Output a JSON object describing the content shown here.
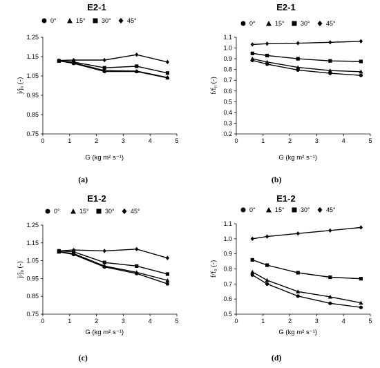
{
  "chart_data": [
    {
      "type": "line",
      "title": "E2-1",
      "panel_label": "(a)",
      "xlabel": "G (kg m² s⁻¹)",
      "ylabel": "j/j₀ (-)",
      "xlim": [
        0,
        5
      ],
      "ylim": [
        0.75,
        1.25
      ],
      "xticks": [
        0,
        1,
        2,
        3,
        4,
        5
      ],
      "yticks": [
        0.75,
        0.85,
        0.95,
        1.05,
        1.15,
        1.25
      ],
      "grid": false,
      "legend": "top",
      "series": [
        {
          "name": "0°",
          "marker": "circle",
          "x": [
            0.6,
            1.15,
            2.3,
            3.5,
            4.65
          ],
          "y": [
            1.128,
            1.115,
            1.073,
            1.073,
            1.04
          ]
        },
        {
          "name": "15°",
          "marker": "triangle",
          "x": [
            0.6,
            1.15,
            2.3,
            3.5,
            4.65
          ],
          "y": [
            1.128,
            1.118,
            1.078,
            1.075,
            1.042
          ]
        },
        {
          "name": "30°",
          "marker": "square",
          "x": [
            0.6,
            1.15,
            2.3,
            3.5,
            4.65
          ],
          "y": [
            1.128,
            1.122,
            1.092,
            1.1,
            1.065
          ]
        },
        {
          "name": "45°",
          "marker": "diamond",
          "x": [
            0.6,
            1.15,
            2.3,
            3.5,
            4.65
          ],
          "y": [
            1.13,
            1.132,
            1.132,
            1.16,
            1.122
          ]
        }
      ]
    },
    {
      "type": "line",
      "title": "E2-1",
      "panel_label": "(b)",
      "xlabel": "G (kg m² s⁻¹)",
      "ylabel": "f/f₀ (-)",
      "xlim": [
        0,
        5
      ],
      "ylim": [
        0.2,
        1.1
      ],
      "xticks": [
        0,
        1,
        2,
        3,
        4,
        5
      ],
      "yticks": [
        0.2,
        0.3,
        0.4,
        0.5,
        0.6,
        0.7,
        0.8,
        0.9,
        1.0,
        1.1
      ],
      "grid": false,
      "legend": "top",
      "series": [
        {
          "name": "0°",
          "marker": "circle",
          "x": [
            0.6,
            1.15,
            2.3,
            3.5,
            4.65
          ],
          "y": [
            0.885,
            0.85,
            0.795,
            0.765,
            0.745
          ]
        },
        {
          "name": "15°",
          "marker": "triangle",
          "x": [
            0.6,
            1.15,
            2.3,
            3.5,
            4.65
          ],
          "y": [
            0.9,
            0.87,
            0.82,
            0.79,
            0.78
          ]
        },
        {
          "name": "30°",
          "marker": "square",
          "x": [
            0.6,
            1.15,
            2.3,
            3.5,
            4.65
          ],
          "y": [
            0.95,
            0.93,
            0.9,
            0.88,
            0.875
          ]
        },
        {
          "name": "45°",
          "marker": "diamond",
          "x": [
            0.6,
            1.15,
            2.3,
            3.5,
            4.65
          ],
          "y": [
            1.033,
            1.04,
            1.045,
            1.053,
            1.063
          ]
        }
      ]
    },
    {
      "type": "line",
      "title": "E1-2",
      "panel_label": "(c)",
      "xlabel": "G (kg m² s⁻¹)",
      "ylabel": "j/j₀ (-)",
      "xlim": [
        0,
        5
      ],
      "ylim": [
        0.75,
        1.25
      ],
      "xticks": [
        0,
        1,
        2,
        3,
        4,
        5
      ],
      "yticks": [
        0.75,
        0.85,
        0.95,
        1.05,
        1.15,
        1.25
      ],
      "grid": false,
      "legend": "top",
      "series": [
        {
          "name": "0°",
          "marker": "circle",
          "x": [
            0.6,
            1.15,
            2.3,
            3.5,
            4.65
          ],
          "y": [
            1.1,
            1.085,
            1.015,
            0.978,
            0.92
          ]
        },
        {
          "name": "15°",
          "marker": "triangle",
          "x": [
            0.6,
            1.15,
            2.3,
            3.5,
            4.65
          ],
          "y": [
            1.1,
            1.09,
            1.02,
            0.985,
            0.94
          ]
        },
        {
          "name": "30°",
          "marker": "square",
          "x": [
            0.6,
            1.15,
            2.3,
            3.5,
            4.65
          ],
          "y": [
            1.105,
            1.1,
            1.04,
            1.02,
            0.975
          ]
        },
        {
          "name": "45°",
          "marker": "diamond",
          "x": [
            0.6,
            1.15,
            2.3,
            3.5,
            4.65
          ],
          "y": [
            1.105,
            1.11,
            1.105,
            1.115,
            1.065
          ]
        }
      ]
    },
    {
      "type": "line",
      "title": "E1-2",
      "panel_label": "(d)",
      "xlabel": "G (kg m² s⁻¹)",
      "ylabel": "f/f₀ (-)",
      "xlim": [
        0,
        5
      ],
      "ylim": [
        0.5,
        1.1
      ],
      "xticks": [
        0,
        1,
        2,
        3,
        4,
        5
      ],
      "yticks": [
        0.5,
        0.6,
        0.7,
        0.8,
        0.9,
        1.0,
        1.1
      ],
      "grid": false,
      "legend": "top",
      "series": [
        {
          "name": "0°",
          "marker": "circle",
          "x": [
            0.6,
            1.15,
            2.3,
            3.5,
            4.65
          ],
          "y": [
            0.76,
            0.7,
            0.62,
            0.572,
            0.545
          ]
        },
        {
          "name": "15°",
          "marker": "triangle",
          "x": [
            0.6,
            1.15,
            2.3,
            3.5,
            4.65
          ],
          "y": [
            0.78,
            0.725,
            0.65,
            0.615,
            0.575
          ]
        },
        {
          "name": "30°",
          "marker": "square",
          "x": [
            0.6,
            1.15,
            2.3,
            3.5,
            4.65
          ],
          "y": [
            0.86,
            0.825,
            0.775,
            0.745,
            0.735
          ]
        },
        {
          "name": "45°",
          "marker": "diamond",
          "x": [
            0.6,
            1.15,
            2.3,
            3.5,
            4.65
          ],
          "y": [
            1.0,
            1.015,
            1.035,
            1.055,
            1.075
          ]
        }
      ]
    }
  ]
}
